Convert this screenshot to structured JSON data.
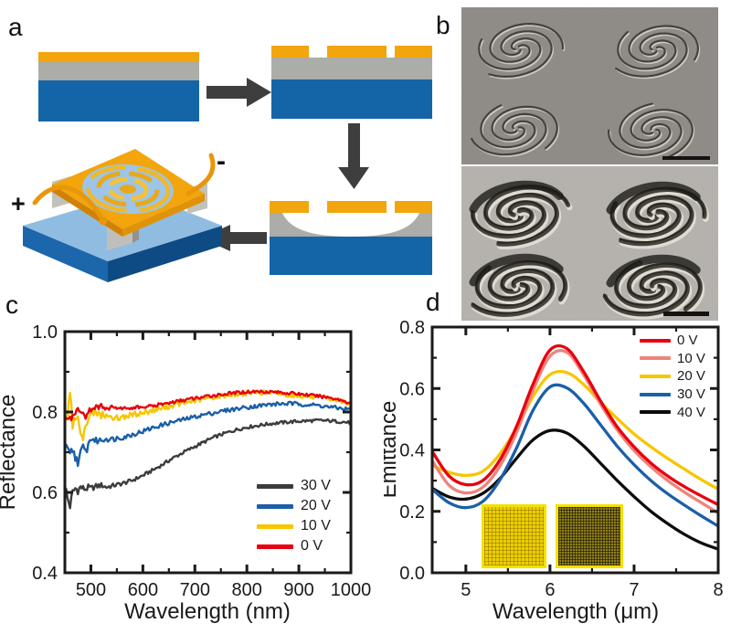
{
  "panels": {
    "a": "a",
    "b": "b",
    "c": "c",
    "d": "d"
  },
  "device": {
    "plus": "+",
    "minus": "-"
  },
  "colors": {
    "layer_orange": "#f2a50c",
    "layer_gray": "#acaca8",
    "layer_blue": "#1465a8",
    "arrow_gray": "#3f3e3e",
    "frame_black": "#1b1a19"
  },
  "chart_data": [
    {
      "type": "line",
      "panel": "c",
      "title": "",
      "xlabel": "Wavelength (nm)",
      "ylabel": "Reflectance",
      "xlim": [
        450,
        1000
      ],
      "ylim": [
        0.4,
        1.0
      ],
      "grid": false,
      "legend_position": "bottom-right",
      "xticks": {
        "major": [
          500,
          600,
          700,
          800,
          900,
          1000
        ],
        "minor": [
          550,
          650,
          750,
          850,
          950
        ],
        "labels": [
          "500",
          "600",
          "700",
          "800",
          "900",
          "1000"
        ]
      },
      "yticks": {
        "major": [
          0.4,
          0.6,
          0.8,
          1.0
        ],
        "minor": [
          0.5,
          0.7,
          0.9
        ],
        "labels": [
          "0.4",
          "0.6",
          "0.8",
          "1.0"
        ]
      },
      "series": [
        {
          "name": "30 V",
          "color": "#3d3b3c",
          "noise": 0.004,
          "x": [
            450,
            455,
            460,
            465,
            470,
            475,
            480,
            485,
            490,
            495,
            500,
            510,
            520,
            530,
            540,
            550,
            560,
            570,
            580,
            600,
            620,
            640,
            660,
            680,
            700,
            720,
            740,
            760,
            780,
            800,
            820,
            840,
            860,
            880,
            900,
            920,
            940,
            960,
            980,
            1000
          ],
          "values": [
            0.62,
            0.585,
            0.566,
            0.6,
            0.61,
            0.605,
            0.613,
            0.61,
            0.608,
            0.612,
            0.61,
            0.615,
            0.618,
            0.613,
            0.616,
            0.619,
            0.622,
            0.626,
            0.63,
            0.642,
            0.656,
            0.671,
            0.687,
            0.701,
            0.714,
            0.727,
            0.739,
            0.748,
            0.756,
            0.762,
            0.766,
            0.77,
            0.773,
            0.775,
            0.777,
            0.778,
            0.779,
            0.778,
            0.776,
            0.773
          ]
        },
        {
          "name": "20 V",
          "color": "#1a5fa8",
          "noise": 0.005,
          "x": [
            450,
            455,
            460,
            465,
            470,
            475,
            480,
            485,
            490,
            495,
            500,
            510,
            520,
            530,
            540,
            550,
            560,
            570,
            580,
            600,
            620,
            640,
            660,
            680,
            700,
            720,
            740,
            760,
            780,
            800,
            820,
            840,
            860,
            880,
            900,
            920,
            940,
            960,
            980,
            1000
          ],
          "values": [
            0.712,
            0.7,
            0.692,
            0.705,
            0.688,
            0.678,
            0.695,
            0.712,
            0.7,
            0.718,
            0.735,
            0.728,
            0.73,
            0.734,
            0.732,
            0.735,
            0.737,
            0.74,
            0.744,
            0.752,
            0.761,
            0.769,
            0.776,
            0.782,
            0.788,
            0.794,
            0.799,
            0.804,
            0.808,
            0.812,
            0.815,
            0.818,
            0.82,
            0.821,
            0.82,
            0.818,
            0.816,
            0.812,
            0.809,
            0.806
          ]
        },
        {
          "name": "10 V",
          "color": "#f7c600",
          "noise": 0.006,
          "x": [
            450,
            455,
            460,
            465,
            470,
            475,
            480,
            485,
            490,
            495,
            500,
            510,
            520,
            530,
            540,
            550,
            560,
            570,
            580,
            600,
            620,
            640,
            660,
            680,
            700,
            720,
            740,
            760,
            780,
            800,
            820,
            840,
            860,
            880,
            900,
            920,
            940,
            960,
            980,
            1000
          ],
          "values": [
            0.768,
            0.79,
            0.835,
            0.772,
            0.78,
            0.8,
            0.758,
            0.742,
            0.76,
            0.788,
            0.795,
            0.798,
            0.793,
            0.79,
            0.788,
            0.785,
            0.788,
            0.79,
            0.793,
            0.798,
            0.804,
            0.81,
            0.817,
            0.823,
            0.828,
            0.833,
            0.838,
            0.842,
            0.845,
            0.847,
            0.849,
            0.848,
            0.846,
            0.843,
            0.841,
            0.838,
            0.835,
            0.832,
            0.828,
            0.822
          ]
        },
        {
          "name": "0 V",
          "color": "#e8000d",
          "noise": 0.004,
          "x": [
            450,
            455,
            460,
            465,
            470,
            475,
            480,
            485,
            490,
            495,
            500,
            510,
            520,
            530,
            540,
            550,
            560,
            570,
            580,
            600,
            620,
            640,
            660,
            680,
            700,
            720,
            740,
            760,
            780,
            800,
            820,
            840,
            860,
            880,
            900,
            920,
            940,
            960,
            980,
            1000
          ],
          "values": [
            0.8,
            0.792,
            0.778,
            0.802,
            0.795,
            0.812,
            0.806,
            0.79,
            0.778,
            0.8,
            0.808,
            0.812,
            0.815,
            0.81,
            0.812,
            0.811,
            0.809,
            0.81,
            0.811,
            0.812,
            0.815,
            0.82,
            0.825,
            0.83,
            0.834,
            0.838,
            0.842,
            0.845,
            0.848,
            0.85,
            0.851,
            0.851,
            0.849,
            0.847,
            0.845,
            0.842,
            0.839,
            0.836,
            0.83,
            0.822
          ]
        }
      ]
    },
    {
      "type": "line",
      "panel": "d",
      "title": "",
      "xlabel": "Wavelength (μm)",
      "ylabel": "Emittance",
      "xlim": [
        4.6,
        8.0
      ],
      "ylim": [
        0.0,
        0.8
      ],
      "grid": false,
      "legend_position": "top-right",
      "smooth": true,
      "xticks": {
        "major": [
          5,
          6,
          7,
          8
        ],
        "minor": [
          5.5,
          6.5,
          7.5
        ],
        "labels": [
          "5",
          "6",
          "7",
          "8"
        ]
      },
      "yticks": {
        "major": [
          0.0,
          0.2,
          0.4,
          0.6,
          0.8
        ],
        "minor": [
          0.1,
          0.3,
          0.5,
          0.7
        ],
        "labels": [
          "0.0",
          "0.2",
          "0.4",
          "0.6",
          "0.8"
        ]
      },
      "series": [
        {
          "name": "0 V",
          "color": "#e8000d",
          "x": [
            4.6,
            4.8,
            5.0,
            5.2,
            5.4,
            5.6,
            5.8,
            6.0,
            6.2,
            6.4,
            6.6,
            6.8,
            7.0,
            7.2,
            7.4,
            7.6,
            7.8,
            8.0
          ],
          "values": [
            0.395,
            0.315,
            0.287,
            0.3,
            0.365,
            0.475,
            0.615,
            0.725,
            0.73,
            0.655,
            0.56,
            0.475,
            0.41,
            0.357,
            0.315,
            0.28,
            0.25,
            0.222
          ]
        },
        {
          "name": "10 V",
          "color": "#ee837b",
          "x": [
            4.6,
            4.8,
            5.0,
            5.2,
            5.4,
            5.6,
            5.8,
            6.0,
            6.2,
            6.4,
            6.6,
            6.8,
            7.0,
            7.2,
            7.4,
            7.6,
            7.8,
            8.0
          ],
          "values": [
            0.365,
            0.285,
            0.26,
            0.278,
            0.345,
            0.455,
            0.595,
            0.705,
            0.718,
            0.645,
            0.55,
            0.465,
            0.398,
            0.345,
            0.3,
            0.262,
            0.228,
            0.195
          ]
        },
        {
          "name": "20 V",
          "color": "#f7c600",
          "x": [
            4.6,
            4.8,
            5.0,
            5.2,
            5.4,
            5.6,
            5.8,
            6.0,
            6.2,
            6.4,
            6.6,
            6.8,
            7.0,
            7.2,
            7.4,
            7.6,
            7.8,
            8.0
          ],
          "values": [
            0.35,
            0.327,
            0.317,
            0.33,
            0.385,
            0.47,
            0.575,
            0.645,
            0.652,
            0.613,
            0.555,
            0.502,
            0.452,
            0.41,
            0.372,
            0.337,
            0.303,
            0.272
          ]
        },
        {
          "name": "30 V",
          "color": "#1a5fa8",
          "x": [
            4.6,
            4.8,
            5.0,
            5.2,
            5.4,
            5.6,
            5.8,
            6.0,
            6.2,
            6.4,
            6.6,
            6.8,
            7.0,
            7.2,
            7.4,
            7.6,
            7.8,
            8.0
          ],
          "values": [
            0.272,
            0.228,
            0.212,
            0.232,
            0.3,
            0.405,
            0.53,
            0.605,
            0.602,
            0.552,
            0.482,
            0.412,
            0.352,
            0.3,
            0.257,
            0.22,
            0.185,
            0.152
          ]
        },
        {
          "name": "40 V",
          "color": "#0d0c0c",
          "x": [
            4.6,
            4.8,
            5.0,
            5.2,
            5.4,
            5.6,
            5.8,
            6.0,
            6.2,
            6.4,
            6.6,
            6.8,
            7.0,
            7.2,
            7.4,
            7.6,
            7.8,
            8.0
          ],
          "values": [
            0.275,
            0.247,
            0.24,
            0.258,
            0.305,
            0.372,
            0.433,
            0.463,
            0.455,
            0.413,
            0.357,
            0.3,
            0.248,
            0.2,
            0.16,
            0.125,
            0.097,
            0.077
          ]
        }
      ]
    }
  ]
}
